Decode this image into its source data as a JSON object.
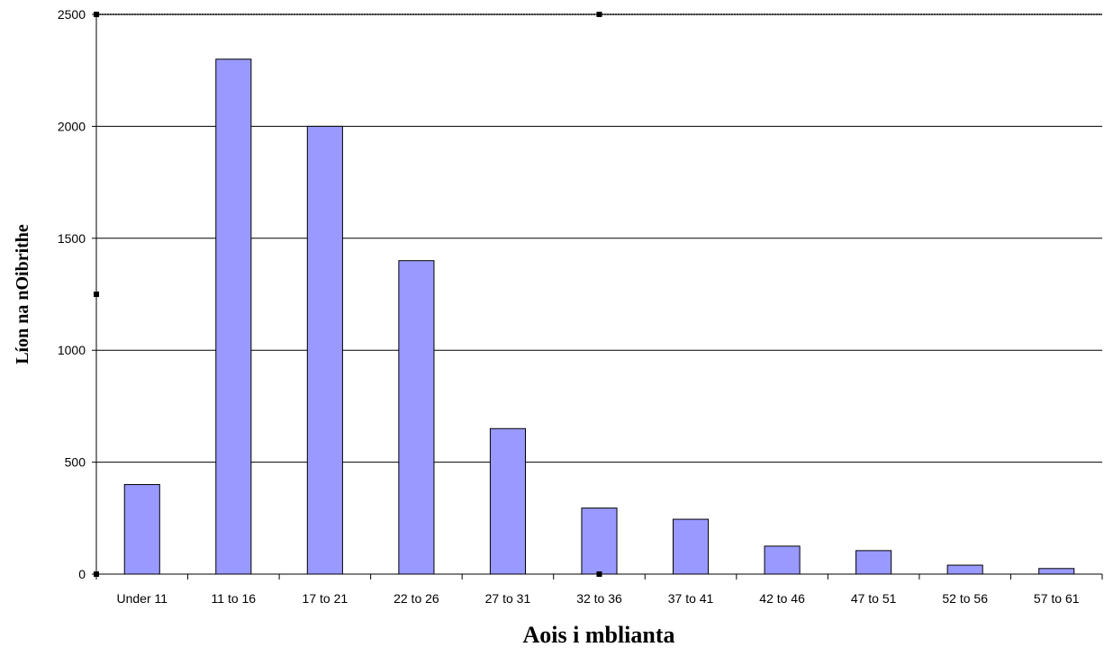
{
  "chart_data": {
    "type": "bar",
    "title": "",
    "xlabel": "Aois i mblianta",
    "ylabel": "Líon na nOibrithe",
    "categories": [
      "Under 11",
      "11 to 16",
      "17 to 21",
      "22 to 26",
      "27 to 31",
      "32 to 36",
      "37 to 41",
      "42 to 46",
      "47 to 51",
      "52 to 56",
      "57 to 61"
    ],
    "values": [
      400,
      2300,
      2000,
      1400,
      650,
      295,
      245,
      125,
      105,
      40,
      25
    ],
    "ylim": [
      0,
      2500
    ],
    "yticks": [
      0,
      500,
      1000,
      1500,
      2000,
      2500
    ],
    "grid": true,
    "legend": "none",
    "bar_color": "#9999ff"
  }
}
